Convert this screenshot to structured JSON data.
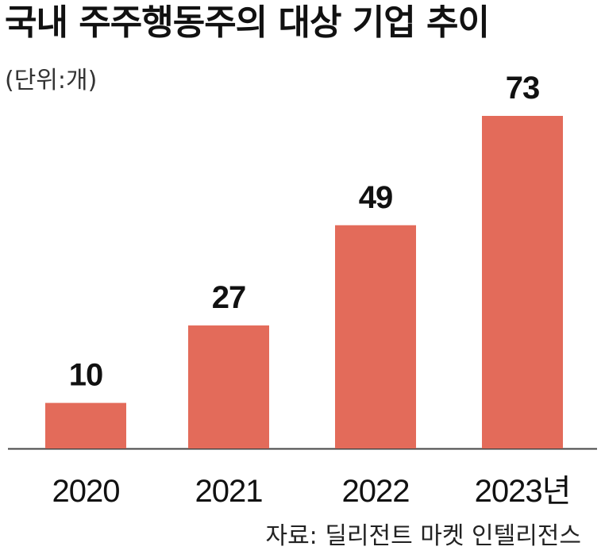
{
  "title": "국내 주주행동주의 대상 기업 추이",
  "unit_note": "(단위:개)",
  "source": "자료: 딜리전트 마켓 인텔리전스",
  "colors": {
    "bar": "#E36B5A",
    "baseline": "#444444"
  },
  "chart_data": {
    "type": "bar",
    "categories": [
      "2020",
      "2021",
      "2022",
      "2023년"
    ],
    "values": [
      10,
      27,
      49,
      73
    ],
    "data_labels": [
      "10",
      "27",
      "49",
      "73"
    ],
    "title": "국내 주주행동주의 대상 기업 추이",
    "ylabel": "(단위:개)",
    "ylim": [
      0,
      73
    ],
    "grid": false,
    "legend": "none"
  }
}
